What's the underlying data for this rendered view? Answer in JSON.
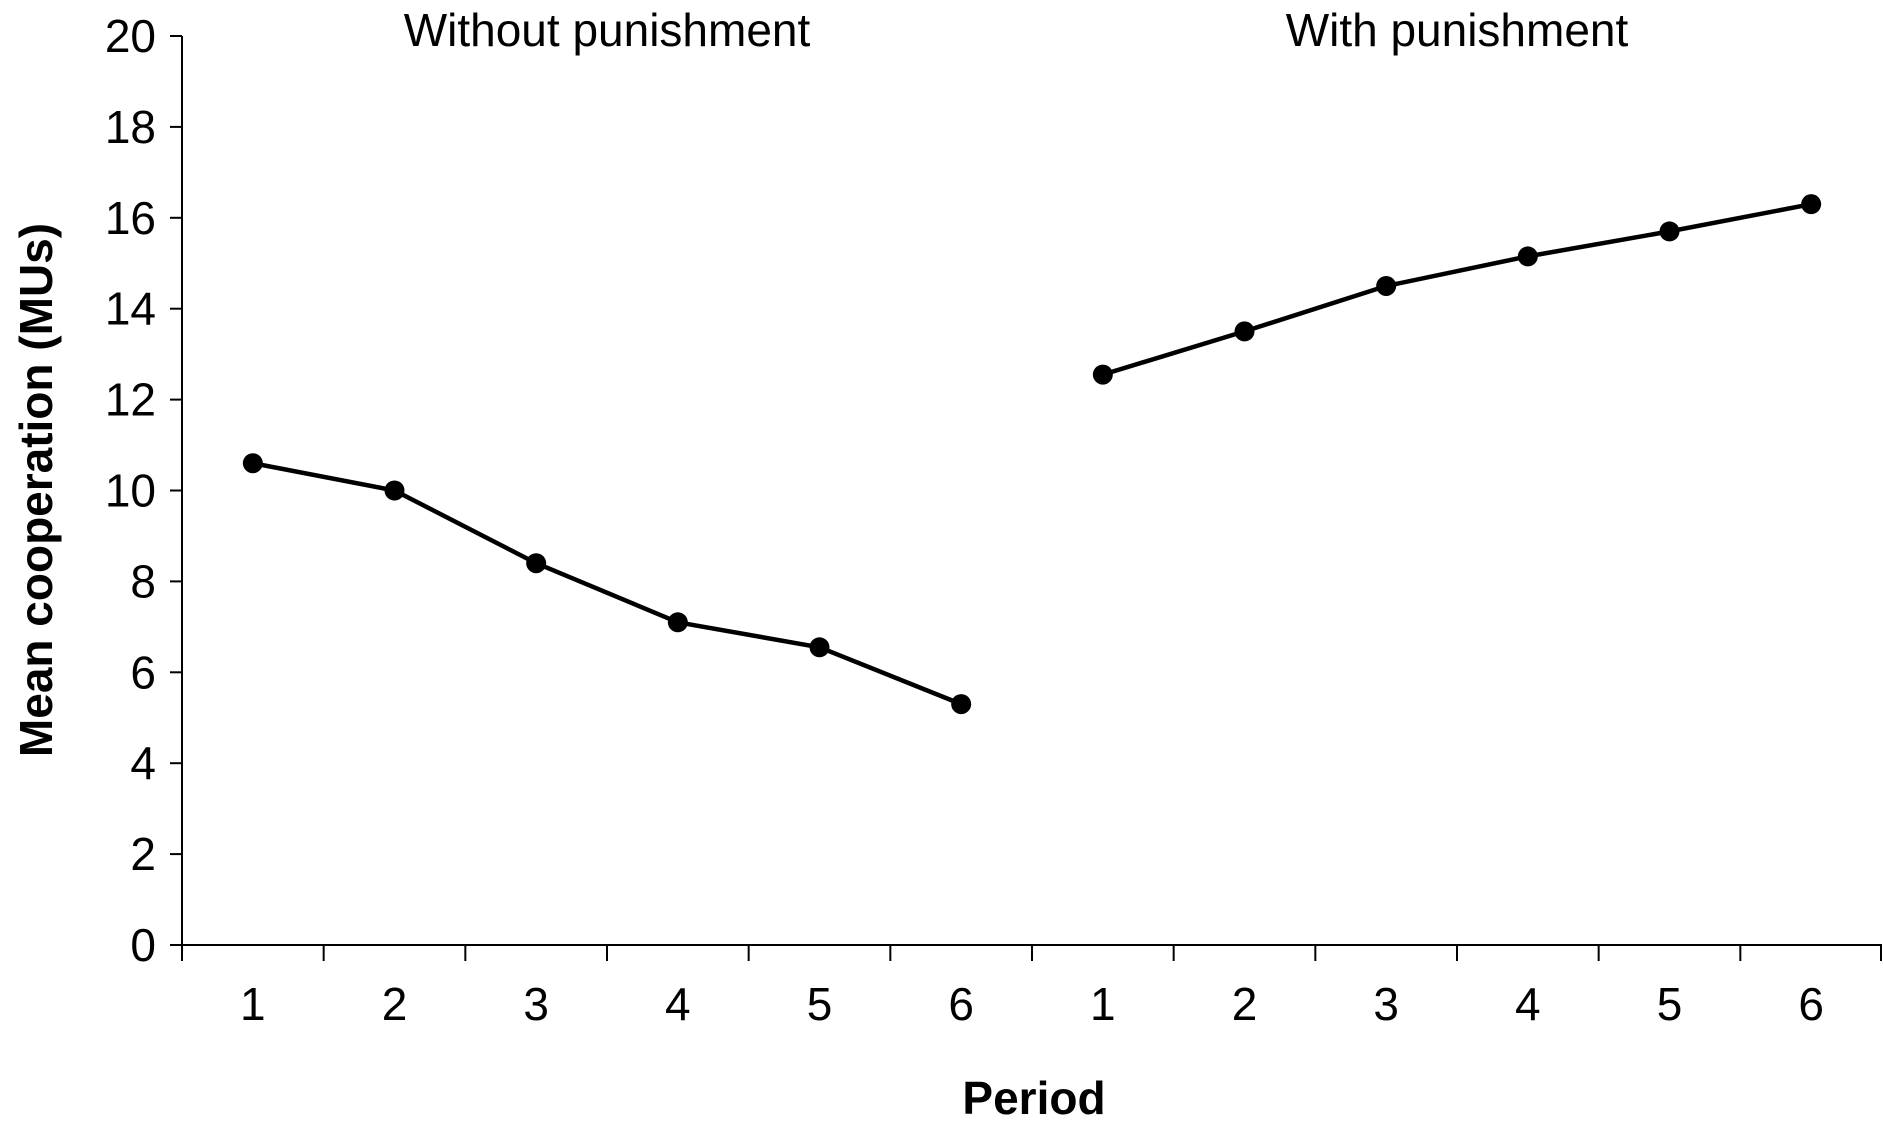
{
  "chart_data": {
    "type": "line",
    "xlabel": "Period",
    "ylabel": "Mean cooperation (MUs)",
    "ylim": [
      0,
      20
    ],
    "yticks": [
      0,
      2,
      4,
      6,
      8,
      10,
      12,
      14,
      16,
      18,
      20
    ],
    "grid": false,
    "legend": "none",
    "categories": [
      "1",
      "2",
      "3",
      "4",
      "5",
      "6",
      "1",
      "2",
      "3",
      "4",
      "5",
      "6"
    ],
    "line_color": "#000000",
    "series": [
      {
        "panel_label": "Without punishment",
        "x": [
          "1",
          "2",
          "3",
          "4",
          "5",
          "6"
        ],
        "values": [
          10.6,
          10.0,
          8.4,
          7.1,
          6.55,
          5.3
        ]
      },
      {
        "panel_label": "With punishment",
        "x": [
          "1",
          "2",
          "3",
          "4",
          "5",
          "6"
        ],
        "values": [
          12.55,
          13.5,
          14.5,
          15.15,
          15.7,
          16.3
        ]
      }
    ]
  }
}
